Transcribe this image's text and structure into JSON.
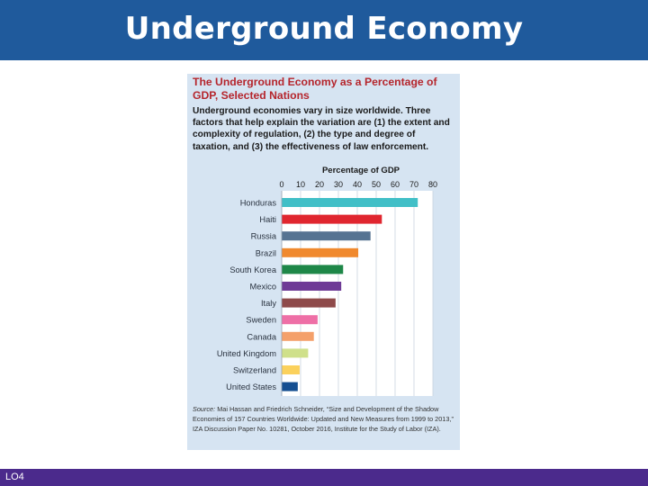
{
  "header": {
    "title": "Underground Economy"
  },
  "panel": {
    "title": "The Underground Economy as a Percentage of GDP, Selected Nations",
    "description": "Underground economies vary in size worldwide. Three factors that help explain the variation are (1) the extent and complexity of regulation, (2) the type and degree of taxation, and (3) the effectiveness of law enforcement.",
    "source_label": "Source:",
    "source": "Mai Hassan and Friedrich Schneider, “Size and Development of the Shadow Economies of 157 Countries Worldwide: Updated and New Measures from 1999 to 2013,” IZA Discussion Paper No. 10281, October 2016, Institute for the Study of Labor (IZA)."
  },
  "chart_data": {
    "type": "bar",
    "orientation": "horizontal",
    "title": "Percentage of GDP",
    "xlabel": "Percentage of GDP",
    "xlim": [
      0,
      80
    ],
    "xticks": [
      0,
      10,
      20,
      30,
      40,
      50,
      60,
      70,
      80
    ],
    "grid": true,
    "categories": [
      "Honduras",
      "Haiti",
      "Russia",
      "Brazil",
      "South Korea",
      "Mexico",
      "Italy",
      "Sweden",
      "Canada",
      "United Kingdom",
      "Switzerland",
      "United States"
    ],
    "values": [
      72,
      53,
      47,
      40.5,
      32.5,
      31.5,
      28.5,
      19,
      17,
      14,
      9.5,
      8.5
    ],
    "colors": [
      "#41bfc7",
      "#e0262f",
      "#567392",
      "#f0892e",
      "#1e8748",
      "#6e3a96",
      "#8e4a4a",
      "#ee6fa6",
      "#f4a06a",
      "#cfe08a",
      "#fbd15c",
      "#164f91"
    ]
  },
  "footer": {
    "label": "LO4"
  }
}
